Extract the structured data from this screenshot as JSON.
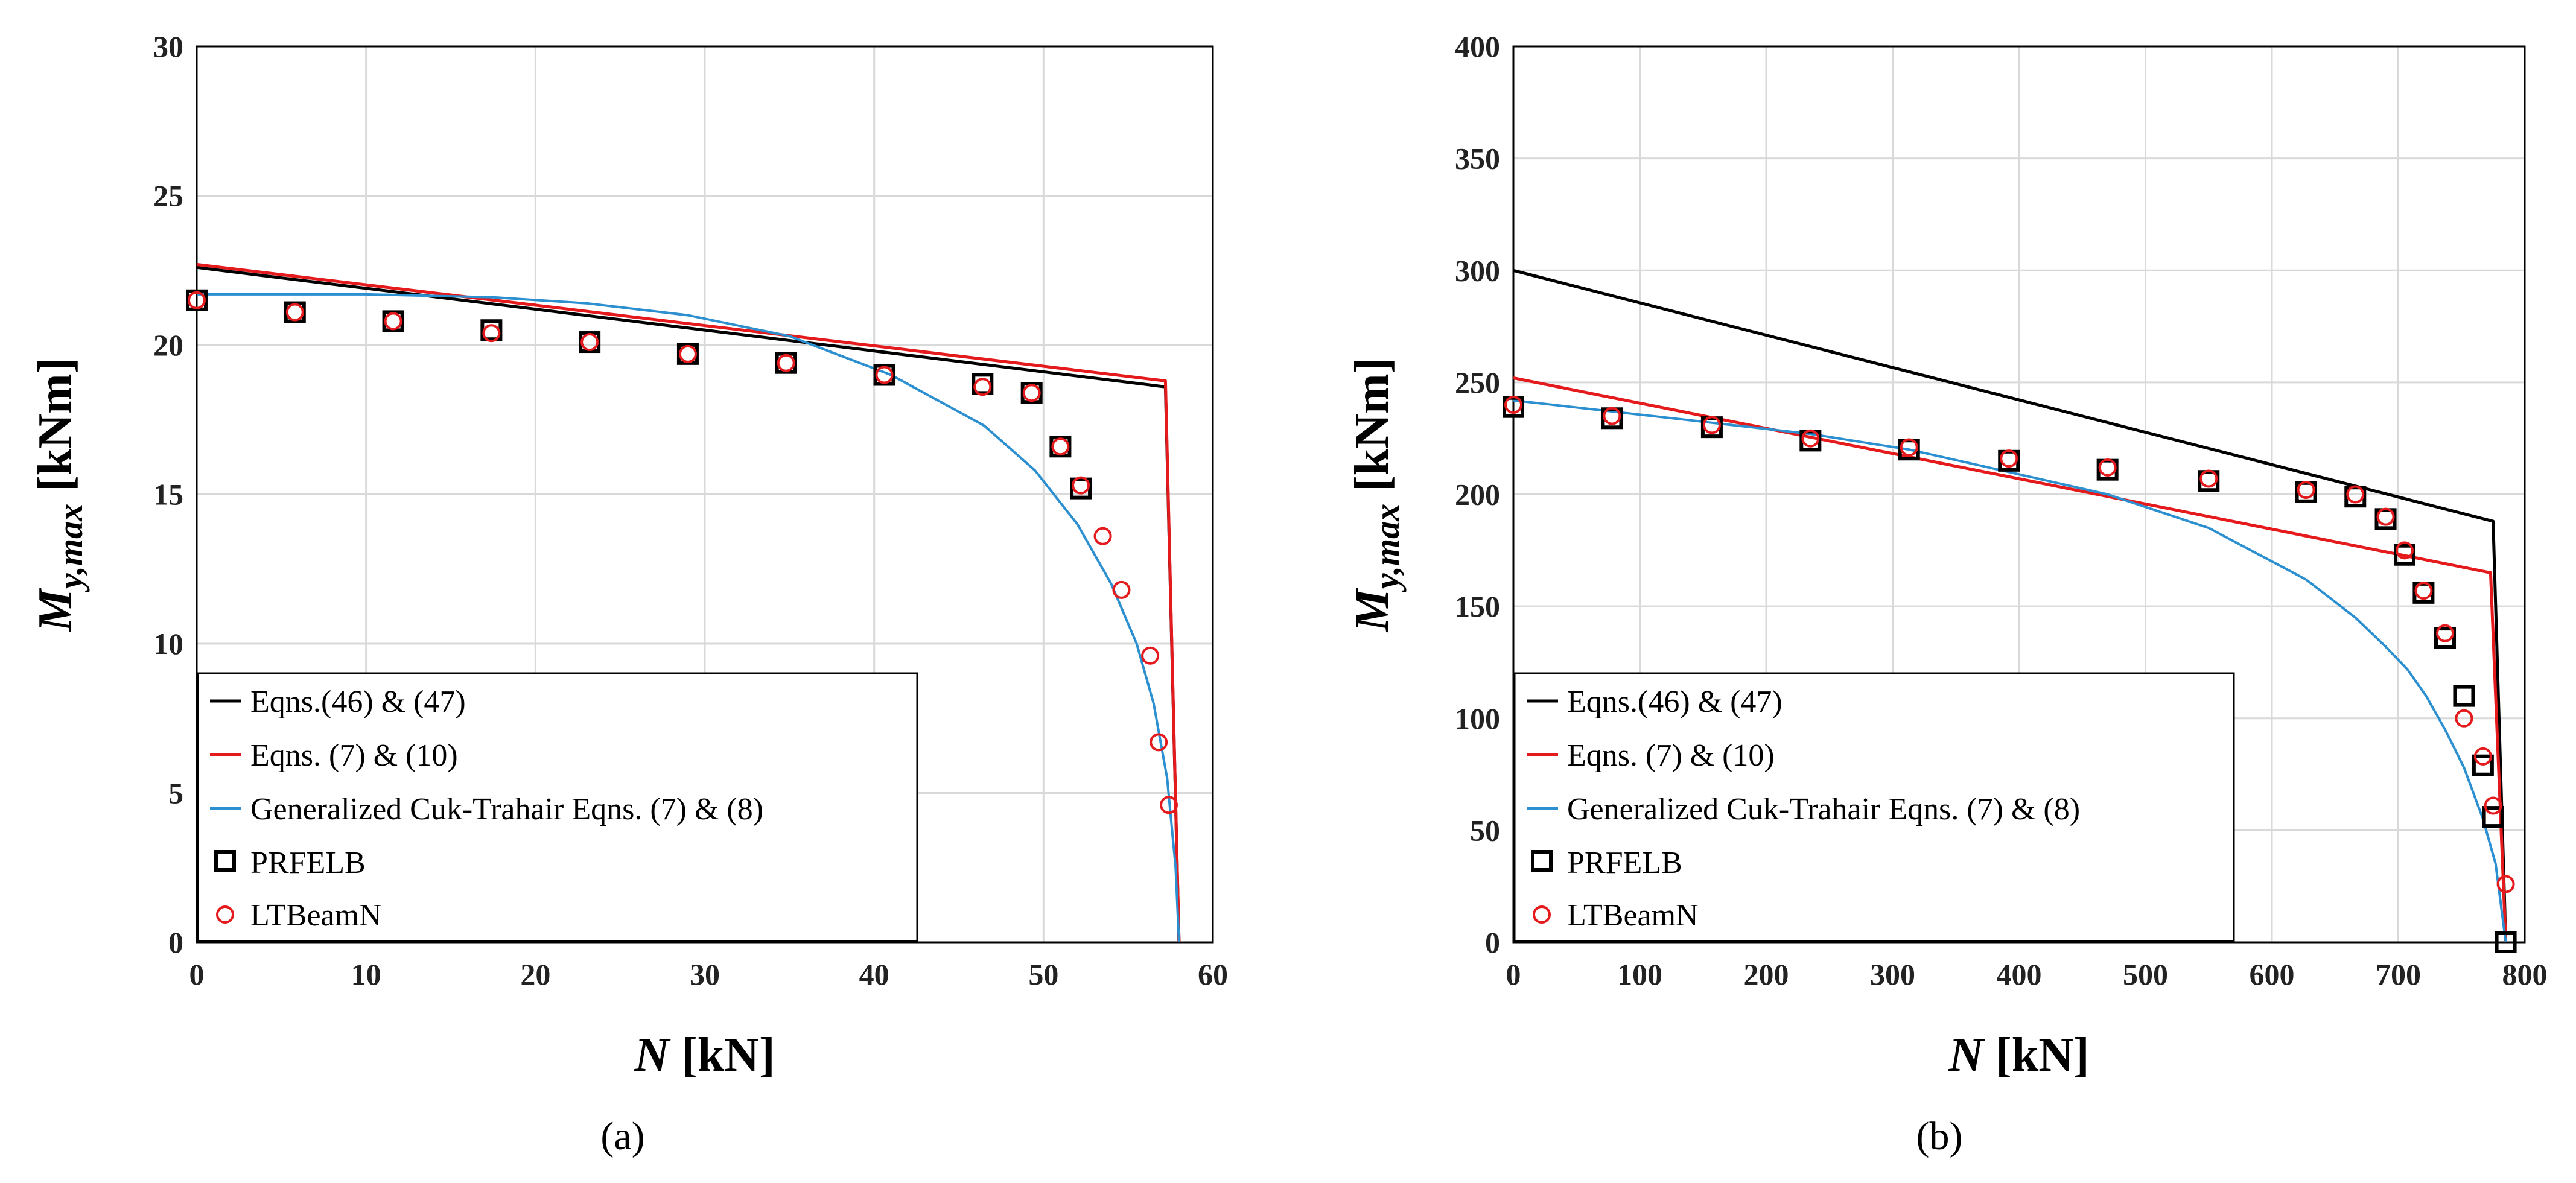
{
  "colors": {
    "black": "#000000",
    "red": "#e41a1c",
    "blue": "#2b8fd0",
    "grid": "#d9d9d9"
  },
  "chart_data": [
    {
      "panel": "(a)",
      "type": "line",
      "xlabel": "N [kN]",
      "xlabel_var": "N",
      "xlabel_unit": "[kN]",
      "ylabel": "My,max [kNm]",
      "ylabel_var": "M",
      "ylabel_sub": "y,max",
      "ylabel_unit": "[kNm]",
      "xlim": [
        0,
        60
      ],
      "ylim": [
        0,
        30
      ],
      "xticks": [
        0,
        10,
        20,
        30,
        40,
        50,
        60
      ],
      "yticks": [
        0,
        5,
        10,
        15,
        20,
        25,
        30
      ],
      "grid": true,
      "legend_position": "bottom-left",
      "series": [
        {
          "name": "Eqns.(46) & (47)",
          "kind": "line",
          "color": "#000000",
          "x": [
            0,
            57.2,
            58.0
          ],
          "y": [
            22.6,
            18.6,
            0
          ]
        },
        {
          "name": "Eqns. (7) & (10)",
          "kind": "line",
          "color": "#e41a1c",
          "x": [
            0,
            57.2,
            58.0
          ],
          "y": [
            22.7,
            18.8,
            0
          ]
        },
        {
          "name": "Generalized Cuk-Trahair Eqns. (7) & (8)",
          "kind": "line",
          "color": "#2b8fd0",
          "x": [
            0,
            10,
            17.5,
            23,
            29,
            35,
            41,
            46.5,
            49.5,
            52,
            54,
            55.5,
            56.5,
            57.3,
            57.8,
            58.0
          ],
          "y": [
            21.7,
            21.7,
            21.6,
            21.4,
            21.0,
            20.3,
            19.0,
            17.3,
            15.8,
            14.0,
            12.0,
            10.0,
            8.0,
            5.5,
            2.5,
            0
          ]
        },
        {
          "name": "PRFELB",
          "kind": "square",
          "color": "#000000",
          "x": [
            0,
            5.8,
            11.6,
            17.4,
            23.2,
            29.0,
            34.8,
            40.6,
            46.4,
            49.3,
            51.0,
            52.2
          ],
          "y": [
            21.5,
            21.1,
            20.8,
            20.5,
            20.1,
            19.7,
            19.4,
            19.0,
            18.7,
            18.4,
            16.6,
            15.2
          ]
        },
        {
          "name": "LTBeamN",
          "kind": "circle",
          "color": "#e41a1c",
          "x": [
            0,
            5.8,
            11.6,
            17.4,
            23.2,
            29.0,
            34.8,
            40.6,
            46.4,
            49.3,
            51.0,
            52.2,
            53.5,
            54.6,
            56.3,
            56.8,
            57.4
          ],
          "y": [
            21.5,
            21.1,
            20.8,
            20.4,
            20.1,
            19.7,
            19.4,
            19.0,
            18.6,
            18.4,
            16.6,
            15.3,
            13.6,
            11.8,
            9.6,
            6.7,
            4.6
          ]
        }
      ]
    },
    {
      "panel": "(b)",
      "type": "line",
      "xlabel": "N [kN]",
      "xlabel_var": "N",
      "xlabel_unit": "[kN]",
      "ylabel": "My,max [kNm]",
      "ylabel_var": "M",
      "ylabel_sub": "y,max",
      "ylabel_unit": "[kNm]",
      "xlim": [
        0,
        800
      ],
      "ylim": [
        0,
        400
      ],
      "xticks": [
        0,
        100,
        200,
        300,
        400,
        500,
        600,
        700,
        800
      ],
      "yticks": [
        0,
        50,
        100,
        150,
        200,
        250,
        300,
        350,
        400
      ],
      "grid": true,
      "legend_position": "bottom-left",
      "series": [
        {
          "name": "Eqns.(46) & (47)",
          "kind": "line",
          "color": "#000000",
          "x": [
            0,
            775,
            785
          ],
          "y": [
            300,
            188,
            0
          ]
        },
        {
          "name": "Eqns. (7) & (10)",
          "kind": "line",
          "color": "#e41a1c",
          "x": [
            0,
            773,
            785
          ],
          "y": [
            252,
            165,
            0
          ]
        },
        {
          "name": "Generalized Cuk-Trahair Eqns. (7) & (8)",
          "kind": "line",
          "color": "#2b8fd0",
          "x": [
            0,
            78,
            157,
            235,
            313,
            392,
            470,
            550,
            627,
            666,
            690,
            707,
            722,
            737,
            752,
            767,
            777,
            785
          ],
          "y": [
            242,
            237,
            232,
            227,
            220,
            210,
            200,
            185,
            162,
            145,
            132,
            122,
            110,
            95,
            78,
            55,
            35,
            0
          ]
        },
        {
          "name": "PRFELB",
          "kind": "square",
          "color": "#000000",
          "x": [
            0,
            78,
            157,
            235,
            313,
            392,
            470,
            550,
            627,
            666,
            690,
            705,
            720,
            737,
            752,
            767,
            775,
            785
          ],
          "y": [
            239,
            234,
            230,
            224,
            220,
            215,
            211,
            206,
            201,
            199,
            189,
            173,
            156,
            136,
            110,
            79,
            56,
            0
          ]
        },
        {
          "name": "LTBeamN",
          "kind": "circle",
          "color": "#e41a1c",
          "x": [
            0,
            78,
            157,
            235,
            313,
            392,
            470,
            550,
            627,
            666,
            690,
            705,
            720,
            737,
            752,
            767,
            775,
            785
          ],
          "y": [
            240,
            235,
            231,
            225,
            221,
            216,
            212,
            207,
            202,
            200,
            190,
            175,
            157,
            138,
            100,
            83,
            61,
            26
          ]
        }
      ]
    }
  ]
}
